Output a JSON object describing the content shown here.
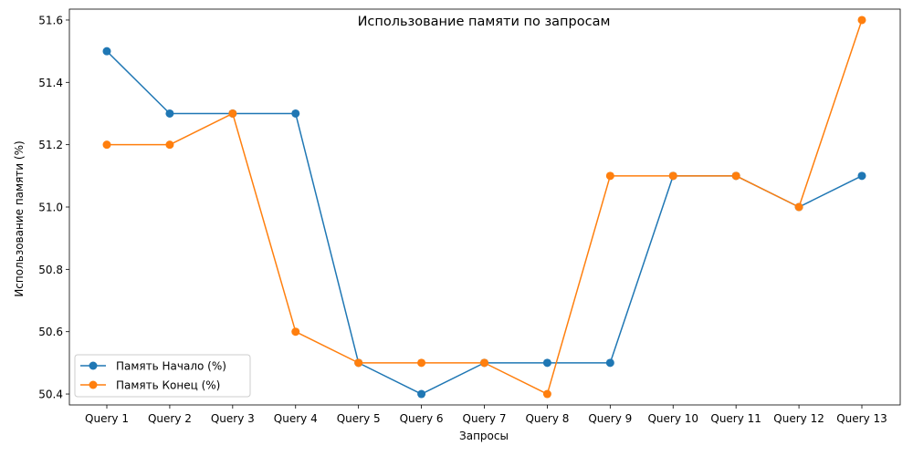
{
  "chart_data": {
    "type": "line",
    "title": "Использование памяти по запросам",
    "xlabel": "Запросы",
    "ylabel": "Использование памяти (%)",
    "categories": [
      "Query 1",
      "Query 2",
      "Query 3",
      "Query 4",
      "Query 5",
      "Query 6",
      "Query 7",
      "Query 8",
      "Query 9",
      "Query 10",
      "Query 11",
      "Query 12",
      "Query 13"
    ],
    "ylim": [
      50.365,
      51.635
    ],
    "yticks": [
      50.4,
      50.6,
      50.8,
      51.0,
      51.2,
      51.4,
      51.6
    ],
    "ytick_labels": [
      "50.4",
      "50.6",
      "50.8",
      "51.0",
      "51.2",
      "51.4",
      "51.6"
    ],
    "grid": false,
    "legend_position": "lower-left",
    "series": [
      {
        "name": "Память Начало (%)",
        "color": "#1f77b4",
        "marker": "circle",
        "values": [
          51.5,
          51.3,
          51.3,
          51.3,
          50.5,
          50.4,
          50.5,
          50.5,
          50.5,
          51.1,
          51.1,
          51.0,
          51.1
        ]
      },
      {
        "name": "Память Конец (%)",
        "color": "#ff7f0e",
        "marker": "circle",
        "values": [
          51.2,
          51.2,
          51.3,
          50.6,
          50.5,
          50.5,
          50.5,
          50.4,
          51.1,
          51.1,
          51.1,
          51.0,
          51.6
        ]
      }
    ]
  }
}
